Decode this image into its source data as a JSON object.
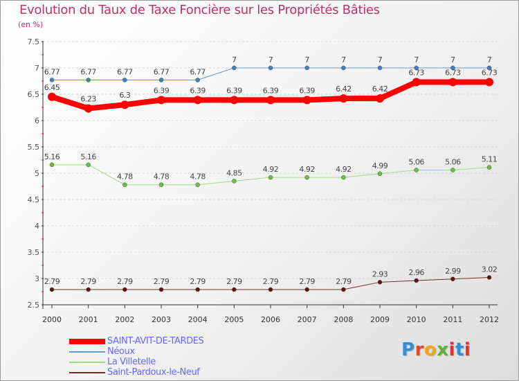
{
  "title": "Evolution du Taux de Taxe Foncière sur les Propriétés Bâties",
  "unit": "(en %)",
  "logo": {
    "text": "Proxiti",
    "colors": [
      "#2f8fd8",
      "#e8452c",
      "#f2a51e",
      "#59b43a",
      "#e0332b",
      "#2f8fd8",
      "#e0332b"
    ]
  },
  "chart_data": {
    "type": "line",
    "title": "Evolution du Taux de Taxe Foncière sur les Propriétés Bâties",
    "ylabel": "(en %)",
    "xlabel": "",
    "ylim": [
      2.5,
      7.5
    ],
    "yticks": [
      2.5,
      3,
      3.5,
      4,
      4.5,
      5,
      5.5,
      6,
      6.5,
      7,
      7.5
    ],
    "ytick_labels": [
      "2.5",
      "3",
      "3.5",
      "4",
      "4.5",
      "5",
      "5.5",
      "6",
      "6.5",
      "7",
      "7.5"
    ],
    "categories": [
      "2000",
      "2001",
      "2002",
      "2003",
      "2004",
      "2005",
      "2006",
      "2007",
      "2008",
      "2009",
      "2010",
      "2011",
      "2012"
    ],
    "grid": "horizontal dashed",
    "legend_position": "bottom-left",
    "series": [
      {
        "name": "Néoux",
        "color": "#5b9bd5",
        "point_color": "#3f7fbf",
        "width": 1,
        "values": [
          6.77,
          6.77,
          6.77,
          6.77,
          6.77,
          7,
          7,
          7,
          7,
          7,
          7,
          7,
          7
        ],
        "labels": [
          "6.77",
          "6.77",
          "6.77",
          "6.77",
          "6.77",
          "7",
          "7",
          "7",
          "7",
          "7",
          "7",
          "7",
          "7"
        ]
      },
      {
        "name": "La Villetelle",
        "color": "#99e07a",
        "point_color": "#6cc23a",
        "width": 1,
        "values": [
          5.16,
          5.16,
          4.78,
          4.78,
          4.78,
          4.85,
          4.92,
          4.92,
          4.92,
          4.99,
          5.06,
          5.06,
          5.11
        ],
        "labels": [
          "5.16",
          "5.16",
          "4.78",
          "4.78",
          "4.78",
          "4.85",
          "4.92",
          "4.92",
          "4.92",
          "4.99",
          "5.06",
          "5.06",
          "5.11"
        ]
      },
      {
        "name": "Saint-Pardoux-le-Neuf",
        "color": "#7a2a2a",
        "point_color": "#5a1515",
        "width": 1,
        "values": [
          2.79,
          2.79,
          2.79,
          2.79,
          2.79,
          2.79,
          2.79,
          2.79,
          2.79,
          2.93,
          2.96,
          2.99,
          3.02
        ],
        "labels": [
          "2.79",
          "2.79",
          "2.79",
          "2.79",
          "2.79",
          "2.79",
          "2.79",
          "2.79",
          "2.79",
          "2.93",
          "2.96",
          "2.99",
          "3.02"
        ]
      },
      {
        "name": "SAINT-AVIT-DE-TARDES",
        "color": "#ff0000",
        "point_color": "#ff0000",
        "width": 8,
        "values": [
          6.45,
          6.23,
          6.3,
          6.39,
          6.39,
          6.39,
          6.39,
          6.39,
          6.42,
          6.42,
          6.73,
          6.73,
          6.73
        ],
        "labels": [
          "6.45",
          "6.23",
          "6.3",
          "6.39",
          "6.39",
          "6.39",
          "6.39",
          "6.39",
          "6.42",
          "6.42",
          "6.73",
          "6.73",
          "6.73"
        ]
      }
    ],
    "legend_order": [
      "SAINT-AVIT-DE-TARDES",
      "Néoux",
      "La Villetelle",
      "Saint-Pardoux-le-Neuf"
    ]
  }
}
